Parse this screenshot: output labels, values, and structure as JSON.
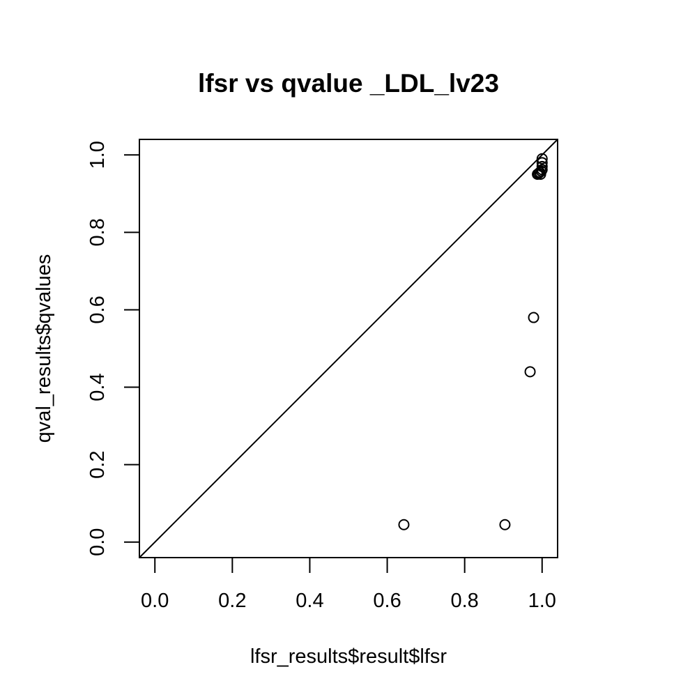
{
  "chart_data": {
    "type": "scatter",
    "title": "lfsr vs qvalue  _LDL_lv23",
    "xlabel": "lfsr_results$result$lfsr",
    "ylabel": "qval_results$qvalues",
    "xlim": [
      -0.04,
      1.04
    ],
    "ylim": [
      -0.04,
      1.04
    ],
    "x_ticks": [
      "0.0",
      "0.2",
      "0.4",
      "0.6",
      "0.8",
      "1.0"
    ],
    "y_ticks": [
      "0.0",
      "0.2",
      "0.4",
      "0.6",
      "0.8",
      "1.0"
    ],
    "reference_line": "y = x",
    "grid": false,
    "points": [
      {
        "x": 0.643,
        "y": 0.045
      },
      {
        "x": 0.904,
        "y": 0.045
      },
      {
        "x": 0.969,
        "y": 0.44
      },
      {
        "x": 0.978,
        "y": 0.58
      },
      {
        "x": 0.988,
        "y": 0.95
      },
      {
        "x": 0.991,
        "y": 0.952
      },
      {
        "x": 0.994,
        "y": 0.955
      },
      {
        "x": 0.996,
        "y": 0.95
      },
      {
        "x": 0.998,
        "y": 0.958
      },
      {
        "x": 1.0,
        "y": 0.962
      },
      {
        "x": 1.0,
        "y": 0.97
      },
      {
        "x": 1.0,
        "y": 0.98
      },
      {
        "x": 1.0,
        "y": 0.99
      }
    ]
  }
}
